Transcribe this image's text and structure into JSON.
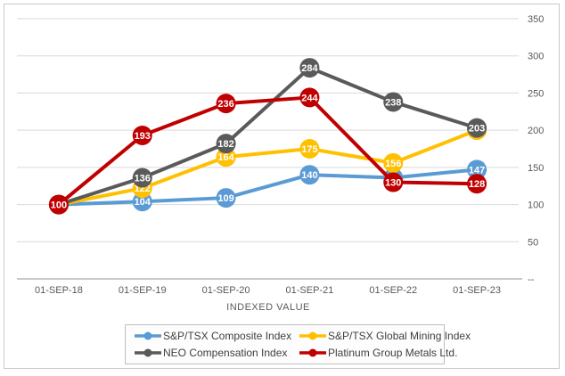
{
  "chart_data": {
    "type": "line",
    "title": "",
    "xlabel": "INDEXED VALUE",
    "x_categories": [
      "01-SEP-18",
      "01-SEP-19",
      "01-SEP-20",
      "01-SEP-21",
      "01-SEP-22",
      "01-SEP-23"
    ],
    "ylim": [
      0,
      350
    ],
    "y_tick_step": 50,
    "y_tick_labels": [
      "350",
      "300",
      "250",
      "200",
      "150",
      "100",
      "50",
      "--"
    ],
    "grid": true,
    "legend_position": "bottom",
    "data_labels": "on-marker",
    "series": [
      {
        "name": "S&P/TSX Composite Index",
        "color": "#5B9BD5",
        "values": [
          100,
          104,
          109,
          140,
          136,
          147
        ]
      },
      {
        "name": "S&P/TSX Global Mining Index",
        "color": "#FFC000",
        "values": [
          100,
          122,
          164,
          175,
          156,
          200
        ]
      },
      {
        "name": "NEO Compensation Index",
        "color": "#5A5A5A",
        "values": [
          100,
          136,
          182,
          284,
          238,
          203
        ]
      },
      {
        "name": "Platinum Group Metals Ltd.",
        "color": "#C00000",
        "values": [
          100,
          193,
          236,
          244,
          130,
          128
        ]
      }
    ],
    "colors": {
      "gridline": "#D9D9D9",
      "axis_line": "#A6A6A6",
      "axis_text": "#595959",
      "marker_label_text": "#FFFFFF",
      "legend_text": "#404040",
      "legend_border": "#BFBFBF",
      "frame_border": "#C9C9C9"
    }
  }
}
